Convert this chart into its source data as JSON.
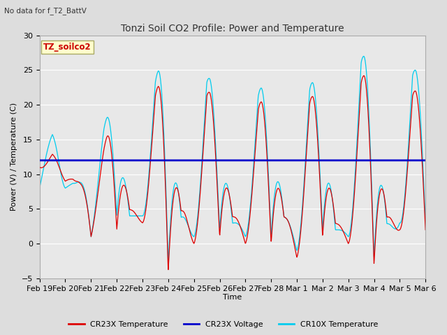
{
  "title": "Tonzi Soil CO2 Profile: Power and Temperature",
  "subtitle": "No data for f_T2_BattV",
  "ylabel": "Power (V) / Temperature (C)",
  "xlabel": "Time",
  "ylim": [
    -5,
    30
  ],
  "yticks": [
    -5,
    0,
    5,
    10,
    15,
    20,
    25,
    30
  ],
  "xtick_labels": [
    "Feb 19",
    "Feb 20",
    "Feb 21",
    "Feb 22",
    "Feb 23",
    "Feb 24",
    "Feb 25",
    "Feb 26",
    "Feb 27",
    "Feb 28",
    "Mar 1",
    "Mar 2",
    "Mar 3",
    "Mar 4",
    "Mar 5",
    "Mar 6"
  ],
  "voltage_level": 12.0,
  "cr23x_color": "#dd0000",
  "cr10x_color": "#00ccee",
  "voltage_color": "#0000cc",
  "bg_color": "#dddddd",
  "plot_bg_color": "#e8e8e8",
  "annotation_box_color": "#ffffcc",
  "annotation_text_color": "#cc0000",
  "annotation_text": "TZ_soilco2",
  "legend_entries": [
    "CR23X Temperature",
    "CR23X Voltage",
    "CR10X Temperature"
  ],
  "legend_colors": [
    "#dd0000",
    "#0000cc",
    "#00ccee"
  ],
  "figsize": [
    6.4,
    4.8
  ],
  "dpi": 100
}
